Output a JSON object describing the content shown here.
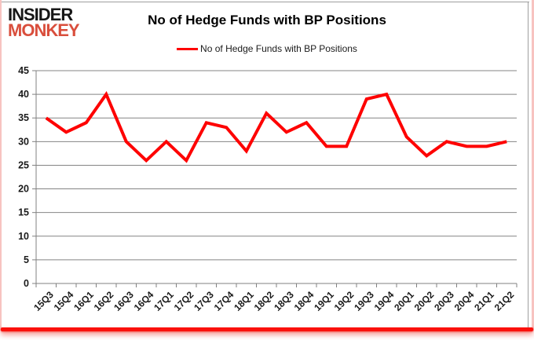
{
  "logo": {
    "line1": "INSIDER",
    "line2": "MONKEY"
  },
  "header": {
    "title": "No of Hedge Funds with BP Positions"
  },
  "legend": {
    "label": "No of Hedge Funds with BP Positions",
    "line_color": "#fe0000"
  },
  "chart_data": {
    "type": "line",
    "title": "No of Hedge Funds with BP Positions",
    "categories": [
      "15Q3",
      "15Q4",
      "16Q1",
      "16Q2",
      "16Q3",
      "16Q4",
      "17Q1",
      "17Q2",
      "17Q3",
      "17Q4",
      "18Q1",
      "18Q2",
      "18Q3",
      "18Q4",
      "19Q1",
      "19Q2",
      "19Q3",
      "19Q4",
      "20Q1",
      "20Q2",
      "20Q3",
      "20Q4",
      "21Q1",
      "21Q2"
    ],
    "series": [
      {
        "name": "No of Hedge Funds with BP Positions",
        "color": "#fe0000",
        "values": [
          35,
          32,
          34,
          40,
          30,
          26,
          30,
          26,
          34,
          33,
          28,
          36,
          32,
          34,
          29,
          29,
          39,
          40,
          31,
          27,
          30,
          29,
          29,
          30
        ]
      }
    ],
    "xlabel": "",
    "ylabel": "",
    "ylim": [
      0,
      45
    ],
    "yticks": [
      0,
      5,
      10,
      15,
      20,
      25,
      30,
      35,
      40,
      45
    ],
    "grid": "horizontal-only",
    "legend_position": "top-center"
  },
  "colors": {
    "series_line": "#fe0000",
    "gridline": "#848484",
    "axis": "#808080",
    "tick_label": "#1a1a1a",
    "title_text": "#000000",
    "logo_black": "#171717",
    "logo_red": "#d94e3c",
    "frame_pink": "#f7c3c0",
    "bottom_accent_red": "#fb100c",
    "background": "#ffffff"
  }
}
